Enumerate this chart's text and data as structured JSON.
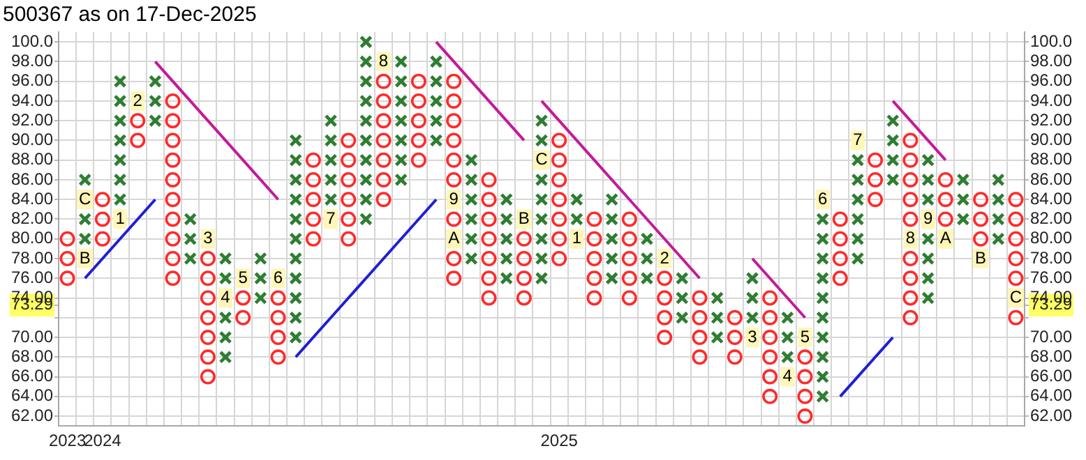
{
  "chart_data": {
    "type": "scatter",
    "title": "500367 as on 17-Dec-2025",
    "categories": [
      "2023",
      null,
      "2024",
      null,
      null,
      null,
      null,
      null,
      null,
      null,
      null,
      null,
      null,
      null,
      null,
      null,
      null,
      null,
      null,
      null,
      null,
      null,
      null,
      null,
      null,
      null,
      null,
      null,
      "2025",
      null,
      null,
      null,
      null,
      null,
      null,
      null,
      null,
      null,
      null,
      null,
      null,
      null,
      null,
      null,
      null,
      null,
      null,
      null,
      null,
      null,
      null,
      null,
      null,
      null,
      null
    ],
    "ylim": [
      61,
      101
    ],
    "yticks": [
      {
        "value": 62,
        "label": "62.00"
      },
      {
        "value": 64,
        "label": "64.00"
      },
      {
        "value": 66,
        "label": "66.00"
      },
      {
        "value": 68,
        "label": "68.00"
      },
      {
        "value": 70,
        "label": "70.00"
      },
      {
        "value": 72,
        "label": null
      },
      {
        "value": 73.29,
        "label": "73.29"
      },
      {
        "value": 74,
        "label": "74.00"
      },
      {
        "value": 76,
        "label": "76.00"
      },
      {
        "value": 78,
        "label": "78.00"
      },
      {
        "value": 80,
        "label": "80.00"
      },
      {
        "value": 82,
        "label": "82.00"
      },
      {
        "value": 84,
        "label": "84.00"
      },
      {
        "value": 86,
        "label": "86.00"
      },
      {
        "value": 88,
        "label": "88.00"
      },
      {
        "value": 90,
        "label": "90.00"
      },
      {
        "value": 92,
        "label": "92.00"
      },
      {
        "value": 94,
        "label": "94.00"
      },
      {
        "value": 96,
        "label": "96.00"
      },
      {
        "value": 98,
        "label": "98.00"
      },
      {
        "value": 100,
        "label": "100.0"
      }
    ],
    "y2lim": [
      61,
      101
    ],
    "y2ticks": [
      {
        "value": 62,
        "label": "62.00"
      },
      {
        "value": 64,
        "label": "64.00"
      },
      {
        "value": 66,
        "label": "66.00"
      },
      {
        "value": 68,
        "label": "68.00"
      },
      {
        "value": 70,
        "label": "70.00"
      },
      {
        "value": 72,
        "label": null
      },
      {
        "value": 73.29,
        "label": "73.29"
      },
      {
        "value": 74,
        "label": "74.00"
      },
      {
        "value": 76,
        "label": "76.00"
      },
      {
        "value": 78,
        "label": "78.00"
      },
      {
        "value": 80,
        "label": "80.00"
      },
      {
        "value": 82,
        "label": "82.00"
      },
      {
        "value": 84,
        "label": "84.00"
      },
      {
        "value": 86,
        "label": "86.00"
      },
      {
        "value": 88,
        "label": "88.00"
      },
      {
        "value": 90,
        "label": "90.00"
      },
      {
        "value": 92,
        "label": "92.00"
      },
      {
        "value": 94,
        "label": "94.00"
      },
      {
        "value": 96,
        "label": "96.00"
      },
      {
        "value": 98,
        "label": "98.00"
      },
      {
        "value": 100,
        "label": "100.0"
      }
    ],
    "grid": true,
    "series": [
      {
        "marker": "cross",
        "color": "#2e7d32",
        "values": [
          null,
          80,
          null,
          84,
          null,
          92,
          null,
          78,
          null,
          68,
          null,
          74,
          null,
          70,
          null,
          84,
          null,
          82,
          null,
          86,
          null,
          90,
          null,
          78,
          null,
          76,
          null,
          76,
          null,
          82,
          null,
          76,
          null,
          76,
          null,
          72,
          null,
          70,
          null,
          72,
          null,
          68,
          null,
          64,
          null,
          78,
          null,
          86,
          null,
          74,
          null,
          82,
          null,
          80,
          null
        ]
      },
      {
        "marker": "cross",
        "color": "#2e7d32",
        "values": [
          null,
          82,
          null,
          86,
          null,
          94,
          null,
          80,
          null,
          70,
          null,
          76,
          null,
          72,
          null,
          86,
          null,
          84,
          null,
          88,
          null,
          92,
          null,
          80,
          null,
          78,
          null,
          78,
          null,
          84,
          null,
          78,
          null,
          78,
          null,
          74,
          null,
          72,
          null,
          74,
          null,
          70,
          null,
          66,
          null,
          80,
          null,
          88,
          null,
          76,
          null,
          84,
          null,
          82,
          null
        ]
      },
      {
        "marker": "cross",
        "color": "#2e7d32",
        "values": [
          null,
          86,
          null,
          88,
          null,
          96,
          null,
          82,
          null,
          72,
          null,
          78,
          null,
          74,
          null,
          88,
          null,
          86,
          null,
          90,
          null,
          94,
          null,
          82,
          null,
          80,
          null,
          80,
          null,
          null,
          null,
          80,
          null,
          80,
          null,
          76,
          null,
          74,
          null,
          76,
          null,
          72,
          null,
          68,
          null,
          82,
          null,
          90,
          null,
          78,
          null,
          86,
          null,
          84,
          null
        ]
      },
      {
        "marker": "cross",
        "color": "#2e7d32",
        "values": [
          null,
          null,
          null,
          90,
          null,
          null,
          null,
          null,
          null,
          76,
          null,
          null,
          null,
          76,
          null,
          90,
          null,
          88,
          null,
          92,
          null,
          96,
          null,
          84,
          null,
          82,
          null,
          82,
          null,
          null,
          null,
          82,
          null,
          null,
          null,
          null,
          null,
          null,
          null,
          null,
          null,
          null,
          null,
          70,
          null,
          84,
          null,
          92,
          null,
          80,
          null,
          null,
          null,
          86,
          null
        ]
      },
      {
        "marker": "cross",
        "color": "#2e7d32",
        "values": [
          null,
          null,
          null,
          92,
          null,
          null,
          null,
          null,
          null,
          78,
          null,
          null,
          null,
          78,
          null,
          92,
          null,
          90,
          null,
          94,
          null,
          98,
          null,
          86,
          null,
          84,
          null,
          84,
          null,
          null,
          null,
          84,
          null,
          null,
          null,
          null,
          null,
          null,
          null,
          null,
          null,
          null,
          null,
          72,
          null,
          86,
          null,
          null,
          null,
          84,
          null,
          null,
          null,
          null,
          null
        ]
      },
      {
        "marker": "cross",
        "color": "#2e7d32",
        "values": [
          null,
          null,
          null,
          94,
          null,
          null,
          null,
          null,
          null,
          null,
          null,
          null,
          null,
          80,
          null,
          null,
          null,
          92,
          null,
          96,
          null,
          null,
          null,
          88,
          null,
          null,
          null,
          86,
          null,
          null,
          null,
          null,
          null,
          null,
          null,
          null,
          null,
          null,
          null,
          null,
          null,
          null,
          null,
          74,
          null,
          88,
          null,
          null,
          null,
          86,
          null,
          null,
          null,
          null,
          null
        ]
      },
      {
        "marker": "cross",
        "color": "#2e7d32",
        "values": [
          null,
          null,
          null,
          96,
          null,
          null,
          null,
          null,
          null,
          null,
          null,
          null,
          null,
          82,
          null,
          null,
          null,
          94,
          null,
          98,
          null,
          null,
          null,
          null,
          null,
          null,
          null,
          90,
          null,
          null,
          null,
          null,
          null,
          null,
          null,
          null,
          null,
          null,
          null,
          null,
          null,
          null,
          null,
          76,
          null,
          null,
          null,
          null,
          null,
          88,
          null,
          null,
          null,
          null,
          null
        ]
      },
      {
        "marker": "cross",
        "color": "#2e7d32",
        "values": [
          null,
          null,
          null,
          null,
          null,
          null,
          null,
          null,
          null,
          null,
          null,
          null,
          null,
          84,
          null,
          null,
          null,
          96,
          null,
          null,
          null,
          null,
          null,
          null,
          null,
          null,
          null,
          92,
          null,
          null,
          null,
          null,
          null,
          null,
          null,
          null,
          null,
          null,
          null,
          null,
          null,
          null,
          null,
          78,
          null,
          null,
          null,
          null,
          null,
          null,
          null,
          null,
          null,
          null,
          null
        ]
      },
      {
        "marker": "cross",
        "color": "#2e7d32",
        "values": [
          null,
          null,
          null,
          null,
          null,
          null,
          null,
          null,
          null,
          null,
          null,
          null,
          null,
          86,
          null,
          null,
          null,
          98,
          null,
          null,
          null,
          null,
          null,
          null,
          null,
          null,
          null,
          null,
          null,
          null,
          null,
          null,
          null,
          null,
          null,
          null,
          null,
          null,
          null,
          null,
          null,
          null,
          null,
          80,
          null,
          null,
          null,
          null,
          null,
          null,
          null,
          null,
          null,
          null,
          null
        ]
      },
      {
        "marker": "cross",
        "color": "#2e7d32",
        "values": [
          null,
          null,
          null,
          null,
          null,
          null,
          null,
          null,
          null,
          null,
          null,
          null,
          null,
          88,
          null,
          null,
          null,
          100,
          null,
          null,
          null,
          null,
          null,
          null,
          null,
          null,
          null,
          null,
          null,
          null,
          null,
          null,
          null,
          null,
          null,
          null,
          null,
          null,
          null,
          null,
          null,
          null,
          null,
          82,
          null,
          null,
          null,
          null,
          null,
          null,
          null,
          null,
          null,
          null,
          null
        ]
      },
      {
        "marker": "cross",
        "color": "#2e7d32",
        "values": [
          null,
          null,
          null,
          null,
          null,
          null,
          null,
          null,
          null,
          null,
          null,
          null,
          null,
          90,
          null,
          null,
          null,
          null,
          null,
          null,
          null,
          null,
          null,
          null,
          null,
          null,
          null,
          null,
          null,
          null,
          null,
          null,
          null,
          null,
          null,
          null,
          null,
          null,
          null,
          null,
          null,
          null,
          null,
          null,
          null,
          null,
          null,
          null,
          null,
          null,
          null,
          null,
          null,
          null,
          null
        ]
      },
      {
        "marker": "circle",
        "color": "#ff2a2a",
        "values": [
          76,
          null,
          80,
          null,
          90,
          null,
          76,
          null,
          66,
          null,
          72,
          null,
          68,
          null,
          80,
          null,
          80,
          null,
          84,
          null,
          88,
          null,
          76,
          null,
          74,
          null,
          74,
          null,
          78,
          null,
          74,
          null,
          74,
          null,
          70,
          null,
          68,
          null,
          68,
          null,
          64,
          null,
          62,
          null,
          76,
          null,
          84,
          null,
          72,
          null,
          82,
          null,
          80,
          null,
          72
        ]
      },
      {
        "marker": "circle",
        "color": "#ff2a2a",
        "values": [
          78,
          null,
          82,
          null,
          92,
          null,
          78,
          null,
          68,
          null,
          74,
          null,
          70,
          null,
          82,
          null,
          82,
          null,
          86,
          null,
          90,
          null,
          78,
          null,
          76,
          null,
          76,
          null,
          80,
          null,
          76,
          null,
          76,
          null,
          72,
          null,
          70,
          null,
          70,
          null,
          66,
          null,
          64,
          null,
          78,
          null,
          86,
          null,
          74,
          null,
          84,
          null,
          82,
          null,
          76
        ]
      },
      {
        "marker": "circle",
        "color": "#ff2a2a",
        "values": [
          80,
          null,
          84,
          null,
          null,
          null,
          80,
          null,
          70,
          null,
          null,
          null,
          72,
          null,
          84,
          null,
          84,
          null,
          88,
          null,
          92,
          null,
          82,
          null,
          78,
          null,
          78,
          null,
          82,
          null,
          78,
          null,
          78,
          null,
          74,
          null,
          72,
          null,
          72,
          null,
          68,
          null,
          66,
          null,
          80,
          null,
          88,
          null,
          76,
          null,
          86,
          null,
          84,
          null,
          78
        ]
      },
      {
        "marker": "circle",
        "color": "#ff2a2a",
        "values": [
          null,
          null,
          null,
          null,
          null,
          null,
          82,
          null,
          72,
          null,
          null,
          null,
          74,
          null,
          86,
          null,
          86,
          null,
          90,
          null,
          94,
          null,
          86,
          null,
          80,
          null,
          80,
          null,
          84,
          null,
          80,
          null,
          80,
          null,
          76,
          null,
          74,
          null,
          null,
          null,
          70,
          null,
          68,
          null,
          82,
          null,
          null,
          null,
          78,
          null,
          null,
          null,
          null,
          null,
          80
        ]
      },
      {
        "marker": "circle",
        "color": "#ff2a2a",
        "values": [
          null,
          null,
          null,
          null,
          null,
          null,
          84,
          null,
          74,
          null,
          null,
          null,
          null,
          null,
          88,
          null,
          88,
          null,
          92,
          null,
          96,
          null,
          88,
          null,
          82,
          null,
          null,
          null,
          86,
          null,
          82,
          null,
          82,
          null,
          null,
          null,
          null,
          null,
          null,
          null,
          72,
          null,
          null,
          null,
          null,
          null,
          null,
          null,
          82,
          null,
          null,
          null,
          null,
          null,
          82
        ]
      },
      {
        "marker": "circle",
        "color": "#ff2a2a",
        "values": [
          null,
          null,
          null,
          null,
          null,
          null,
          86,
          null,
          76,
          null,
          null,
          null,
          null,
          null,
          null,
          null,
          90,
          null,
          94,
          null,
          null,
          null,
          90,
          null,
          84,
          null,
          null,
          null,
          88,
          null,
          null,
          null,
          null,
          null,
          null,
          null,
          null,
          null,
          null,
          null,
          74,
          null,
          null,
          null,
          null,
          null,
          null,
          null,
          84,
          null,
          null,
          null,
          null,
          null,
          84
        ]
      },
      {
        "marker": "circle",
        "color": "#ff2a2a",
        "values": [
          null,
          null,
          null,
          null,
          null,
          null,
          88,
          null,
          78,
          null,
          null,
          null,
          null,
          null,
          null,
          null,
          null,
          null,
          96,
          null,
          null,
          null,
          92,
          null,
          86,
          null,
          null,
          null,
          90,
          null,
          null,
          null,
          null,
          null,
          null,
          null,
          null,
          null,
          null,
          null,
          null,
          null,
          null,
          null,
          null,
          null,
          null,
          null,
          86,
          null,
          null,
          null,
          null,
          null,
          null
        ]
      },
      {
        "marker": "circle",
        "color": "#ff2a2a",
        "values": [
          null,
          null,
          null,
          null,
          null,
          null,
          90,
          null,
          null,
          null,
          null,
          null,
          null,
          null,
          null,
          null,
          null,
          null,
          null,
          null,
          null,
          null,
          94,
          null,
          null,
          null,
          null,
          null,
          null,
          null,
          null,
          null,
          null,
          null,
          null,
          null,
          null,
          null,
          null,
          null,
          null,
          null,
          null,
          null,
          null,
          null,
          null,
          null,
          88,
          null,
          null,
          null,
          null,
          null,
          null
        ]
      },
      {
        "marker": "circle",
        "color": "#ff2a2a",
        "values": [
          null,
          null,
          null,
          null,
          null,
          null,
          92,
          null,
          null,
          null,
          null,
          null,
          null,
          null,
          null,
          null,
          null,
          null,
          null,
          null,
          null,
          null,
          96,
          null,
          null,
          null,
          null,
          null,
          null,
          null,
          null,
          null,
          null,
          null,
          null,
          null,
          null,
          null,
          null,
          null,
          null,
          null,
          null,
          null,
          null,
          null,
          null,
          null,
          90,
          null,
          null,
          null,
          null,
          null,
          null
        ]
      },
      {
        "marker": "circle",
        "color": "#ff2a2a",
        "values": [
          null,
          null,
          null,
          null,
          null,
          null,
          94,
          null,
          null,
          null,
          null,
          null,
          null,
          null,
          null,
          null,
          null,
          null,
          null,
          null,
          null,
          null,
          null,
          null,
          null,
          null,
          null,
          null,
          null,
          null,
          null,
          null,
          null,
          null,
          null,
          null,
          null,
          null,
          null,
          null,
          null,
          null,
          null,
          null,
          null,
          null,
          null,
          null,
          null,
          null,
          null,
          null,
          null,
          null,
          null
        ]
      },
      {
        "name": "1",
        "marker": "square",
        "values": [
          null,
          null,
          null,
          82,
          null,
          null,
          null,
          null,
          null,
          null,
          null,
          null,
          null,
          null,
          null,
          null,
          null,
          null,
          null,
          null,
          null,
          null,
          null,
          null,
          null,
          null,
          null,
          null,
          null,
          80,
          null,
          null,
          null,
          null,
          null,
          null,
          null,
          null,
          null,
          null,
          null,
          null,
          null,
          null,
          null,
          null,
          null,
          null,
          null,
          null,
          null,
          null,
          null,
          null,
          null
        ]
      },
      {
        "name": "2",
        "marker": "square",
        "values": [
          null,
          null,
          null,
          null,
          94,
          null,
          null,
          null,
          null,
          null,
          null,
          null,
          null,
          null,
          null,
          null,
          null,
          null,
          null,
          null,
          null,
          null,
          null,
          null,
          null,
          null,
          null,
          null,
          null,
          null,
          null,
          null,
          null,
          null,
          78,
          null,
          null,
          null,
          null,
          null,
          null,
          null,
          null,
          null,
          null,
          null,
          null,
          null,
          null,
          null,
          null,
          null,
          null,
          null,
          null
        ]
      },
      {
        "name": "3",
        "marker": "square",
        "values": [
          null,
          null,
          null,
          null,
          null,
          null,
          null,
          null,
          80,
          null,
          null,
          null,
          null,
          null,
          null,
          null,
          null,
          null,
          null,
          null,
          null,
          null,
          null,
          null,
          null,
          null,
          null,
          null,
          null,
          null,
          null,
          null,
          null,
          null,
          null,
          null,
          null,
          null,
          null,
          70,
          null,
          null,
          null,
          null,
          null,
          null,
          null,
          null,
          null,
          null,
          null,
          null,
          null,
          null,
          null
        ]
      },
      {
        "name": "4",
        "marker": "square",
        "values": [
          null,
          null,
          null,
          null,
          null,
          null,
          null,
          null,
          null,
          74,
          null,
          null,
          null,
          null,
          null,
          null,
          null,
          null,
          null,
          null,
          null,
          null,
          null,
          null,
          null,
          null,
          null,
          null,
          null,
          null,
          null,
          null,
          null,
          null,
          null,
          null,
          null,
          null,
          null,
          null,
          null,
          66,
          null,
          null,
          null,
          null,
          null,
          null,
          null,
          null,
          null,
          null,
          null,
          null,
          null
        ]
      },
      {
        "name": "5",
        "marker": "square",
        "values": [
          null,
          null,
          null,
          null,
          null,
          null,
          null,
          null,
          null,
          null,
          76,
          null,
          null,
          null,
          null,
          null,
          null,
          null,
          null,
          null,
          null,
          null,
          null,
          null,
          null,
          null,
          null,
          null,
          null,
          null,
          null,
          null,
          null,
          null,
          null,
          null,
          null,
          null,
          null,
          null,
          null,
          null,
          70,
          null,
          null,
          null,
          null,
          null,
          null,
          null,
          null,
          null,
          null,
          null,
          null
        ]
      },
      {
        "name": "6",
        "marker": "square",
        "values": [
          null,
          null,
          null,
          null,
          null,
          null,
          null,
          null,
          null,
          null,
          null,
          null,
          76,
          null,
          null,
          null,
          null,
          null,
          null,
          null,
          null,
          null,
          null,
          null,
          null,
          null,
          null,
          null,
          null,
          null,
          null,
          null,
          null,
          null,
          null,
          null,
          null,
          null,
          null,
          null,
          null,
          null,
          null,
          84,
          null,
          null,
          null,
          null,
          null,
          null,
          null,
          null,
          null,
          null,
          null
        ]
      },
      {
        "name": "7",
        "marker": "square",
        "values": [
          null,
          null,
          null,
          null,
          null,
          null,
          null,
          null,
          null,
          null,
          null,
          null,
          null,
          null,
          null,
          82,
          null,
          null,
          null,
          null,
          null,
          null,
          null,
          null,
          null,
          null,
          null,
          null,
          null,
          null,
          null,
          null,
          null,
          null,
          null,
          null,
          null,
          null,
          null,
          null,
          null,
          null,
          null,
          null,
          null,
          90,
          null,
          null,
          null,
          null,
          null,
          null,
          null,
          null,
          null
        ]
      },
      {
        "name": "8",
        "marker": "square",
        "values": [
          null,
          null,
          null,
          null,
          null,
          null,
          null,
          null,
          null,
          null,
          null,
          null,
          null,
          null,
          null,
          null,
          null,
          null,
          98,
          null,
          null,
          null,
          null,
          null,
          null,
          null,
          null,
          null,
          null,
          null,
          null,
          null,
          null,
          null,
          null,
          null,
          null,
          null,
          null,
          null,
          null,
          null,
          null,
          null,
          null,
          null,
          null,
          null,
          80,
          null,
          null,
          null,
          null,
          null,
          null
        ]
      },
      {
        "name": "9",
        "marker": "square",
        "values": [
          null,
          null,
          null,
          null,
          null,
          null,
          null,
          null,
          null,
          null,
          null,
          null,
          null,
          null,
          null,
          null,
          null,
          null,
          null,
          null,
          null,
          null,
          84,
          null,
          null,
          null,
          null,
          null,
          null,
          null,
          null,
          null,
          null,
          null,
          null,
          null,
          null,
          null,
          null,
          null,
          null,
          null,
          null,
          null,
          null,
          null,
          null,
          null,
          null,
          82,
          null,
          null,
          null,
          null,
          null
        ]
      },
      {
        "name": "A",
        "marker": "square",
        "values": [
          null,
          null,
          null,
          null,
          null,
          null,
          null,
          null,
          null,
          null,
          null,
          null,
          null,
          null,
          null,
          null,
          null,
          null,
          null,
          null,
          null,
          null,
          80,
          null,
          null,
          null,
          null,
          null,
          null,
          null,
          null,
          null,
          null,
          null,
          null,
          null,
          null,
          null,
          null,
          null,
          null,
          null,
          null,
          null,
          null,
          null,
          null,
          null,
          null,
          null,
          80,
          null,
          null,
          null,
          null
        ]
      },
      {
        "name": "B",
        "marker": "square",
        "values": [
          null,
          78,
          null,
          null,
          null,
          null,
          null,
          null,
          null,
          null,
          null,
          null,
          null,
          null,
          null,
          null,
          null,
          null,
          null,
          null,
          null,
          null,
          null,
          null,
          null,
          null,
          82,
          null,
          null,
          null,
          null,
          null,
          null,
          null,
          null,
          null,
          null,
          null,
          null,
          null,
          null,
          null,
          null,
          null,
          null,
          null,
          null,
          null,
          null,
          null,
          null,
          null,
          78,
          null,
          null
        ]
      },
      {
        "name": "C",
        "marker": "square",
        "values": [
          null,
          84,
          null,
          null,
          null,
          null,
          null,
          null,
          null,
          null,
          null,
          null,
          null,
          null,
          null,
          null,
          null,
          null,
          null,
          null,
          null,
          null,
          null,
          null,
          null,
          null,
          null,
          88,
          null,
          null,
          null,
          null,
          null,
          null,
          null,
          null,
          null,
          null,
          null,
          null,
          null,
          null,
          null,
          null,
          null,
          null,
          null,
          null,
          null,
          null,
          null,
          null,
          null,
          null,
          74
        ]
      },
      {
        "type": "line",
        "color": "#1f1fd6",
        "values": [
          null,
          76,
          78,
          80,
          82,
          84,
          null,
          null,
          null,
          null,
          null,
          null,
          null,
          68,
          70,
          72,
          74,
          76,
          78,
          80,
          82,
          84,
          null,
          null,
          null,
          null,
          null,
          null,
          null,
          null,
          null,
          null,
          null,
          null,
          null,
          null,
          null,
          null,
          null,
          null,
          null,
          null,
          null,
          null,
          64,
          66,
          68,
          70,
          null,
          null,
          null,
          null,
          null,
          null,
          null
        ]
      },
      {
        "type": "line",
        "color": "#c41a9a",
        "values": [
          null,
          null,
          null,
          null,
          null,
          98,
          96,
          94,
          92,
          90,
          88,
          86,
          84,
          null,
          null,
          null,
          null,
          null,
          null,
          null,
          null,
          null,
          null,
          null,
          null,
          null,
          null,
          94,
          92,
          90,
          88,
          86,
          84,
          82,
          80,
          78,
          76,
          null,
          null,
          null,
          null,
          null,
          null,
          null,
          null,
          null,
          null,
          94,
          92,
          90,
          88,
          null,
          null,
          null,
          null
        ]
      },
      {
        "type": "line",
        "color": "#c41a9a",
        "values": [
          null,
          null,
          null,
          null,
          null,
          null,
          null,
          null,
          null,
          null,
          null,
          null,
          null,
          null,
          null,
          null,
          null,
          null,
          null,
          null,
          null,
          100,
          98,
          96,
          94,
          92,
          90,
          null,
          null,
          null,
          null,
          null,
          null,
          null,
          null,
          null,
          null,
          null,
          null,
          78,
          76,
          74,
          72,
          null,
          null,
          null,
          null,
          null,
          null,
          null,
          null,
          null,
          null,
          null,
          null
        ]
      }
    ]
  }
}
